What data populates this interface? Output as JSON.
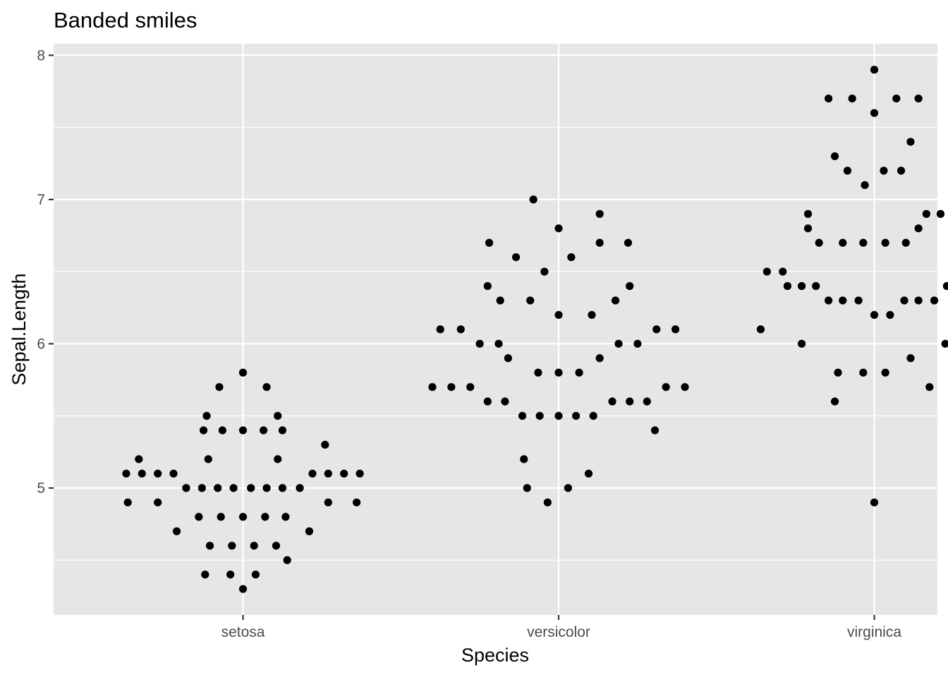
{
  "chart_data": {
    "type": "scatter",
    "title": "Banded smiles",
    "xlabel": "Species",
    "ylabel": "Sepal.Length",
    "categories": [
      "setosa",
      "versicolor",
      "virginica"
    ],
    "y_ticks": [
      5,
      6,
      7,
      8
    ],
    "ylim": [
      4.12,
      8.08
    ],
    "grid": true,
    "legend": "none",
    "colors": {
      "panel": "#e6e6e6",
      "grid": "#ffffff",
      "point": "#000000",
      "tick_text": "#4d4d4d"
    },
    "points": [
      {
        "species": "setosa",
        "x_offset": -0.37,
        "y": 5.1
      },
      {
        "species": "setosa",
        "x_offset": -0.32,
        "y": 5.1
      },
      {
        "species": "setosa",
        "x_offset": -0.27,
        "y": 5.1
      },
      {
        "species": "setosa",
        "x_offset": -0.22,
        "y": 5.1
      },
      {
        "species": "setosa",
        "x_offset": 0.22,
        "y": 5.1
      },
      {
        "species": "setosa",
        "x_offset": 0.27,
        "y": 5.1
      },
      {
        "species": "setosa",
        "x_offset": 0.32,
        "y": 5.1
      },
      {
        "species": "setosa",
        "x_offset": 0.37,
        "y": 5.1
      },
      {
        "species": "setosa",
        "x_offset": -0.33,
        "y": 5.2
      },
      {
        "species": "setosa",
        "x_offset": -0.11,
        "y": 5.2
      },
      {
        "species": "setosa",
        "x_offset": 0.11,
        "y": 5.2
      },
      {
        "species": "setosa",
        "x_offset": 0.26,
        "y": 5.3
      },
      {
        "species": "setosa",
        "x_offset": -0.365,
        "y": 4.9
      },
      {
        "species": "setosa",
        "x_offset": -0.27,
        "y": 4.9
      },
      {
        "species": "setosa",
        "x_offset": 0.27,
        "y": 4.9
      },
      {
        "species": "setosa",
        "x_offset": 0.36,
        "y": 4.9
      },
      {
        "species": "setosa",
        "x_offset": -0.18,
        "y": 5.0
      },
      {
        "species": "setosa",
        "x_offset": -0.13,
        "y": 5.0
      },
      {
        "species": "setosa",
        "x_offset": -0.08,
        "y": 5.0
      },
      {
        "species": "setosa",
        "x_offset": -0.03,
        "y": 5.0
      },
      {
        "species": "setosa",
        "x_offset": 0.025,
        "y": 5.0
      },
      {
        "species": "setosa",
        "x_offset": 0.075,
        "y": 5.0
      },
      {
        "species": "setosa",
        "x_offset": 0.125,
        "y": 5.0
      },
      {
        "species": "setosa",
        "x_offset": 0.18,
        "y": 5.0
      },
      {
        "species": "setosa",
        "x_offset": -0.21,
        "y": 4.7
      },
      {
        "species": "setosa",
        "x_offset": 0.21,
        "y": 4.7
      },
      {
        "species": "setosa",
        "x_offset": -0.14,
        "y": 4.8
      },
      {
        "species": "setosa",
        "x_offset": -0.07,
        "y": 4.8
      },
      {
        "species": "setosa",
        "x_offset": 0.0,
        "y": 4.8
      },
      {
        "species": "setosa",
        "x_offset": 0.07,
        "y": 4.8
      },
      {
        "species": "setosa",
        "x_offset": 0.135,
        "y": 4.8
      },
      {
        "species": "setosa",
        "x_offset": -0.105,
        "y": 4.6
      },
      {
        "species": "setosa",
        "x_offset": -0.035,
        "y": 4.6
      },
      {
        "species": "setosa",
        "x_offset": 0.035,
        "y": 4.6
      },
      {
        "species": "setosa",
        "x_offset": 0.105,
        "y": 4.6
      },
      {
        "species": "setosa",
        "x_offset": 0.14,
        "y": 4.5
      },
      {
        "species": "setosa",
        "x_offset": -0.12,
        "y": 4.4
      },
      {
        "species": "setosa",
        "x_offset": -0.04,
        "y": 4.4
      },
      {
        "species": "setosa",
        "x_offset": 0.04,
        "y": 4.4
      },
      {
        "species": "setosa",
        "x_offset": 0.0,
        "y": 4.3
      },
      {
        "species": "setosa",
        "x_offset": -0.125,
        "y": 5.4
      },
      {
        "species": "setosa",
        "x_offset": -0.065,
        "y": 5.4
      },
      {
        "species": "setosa",
        "x_offset": 0.0,
        "y": 5.4
      },
      {
        "species": "setosa",
        "x_offset": 0.065,
        "y": 5.4
      },
      {
        "species": "setosa",
        "x_offset": 0.125,
        "y": 5.4
      },
      {
        "species": "setosa",
        "x_offset": -0.115,
        "y": 5.5
      },
      {
        "species": "setosa",
        "x_offset": 0.11,
        "y": 5.5
      },
      {
        "species": "setosa",
        "x_offset": -0.075,
        "y": 5.7
      },
      {
        "species": "setosa",
        "x_offset": 0.075,
        "y": 5.7
      },
      {
        "species": "setosa",
        "x_offset": 0.0,
        "y": 5.8
      },
      {
        "species": "versicolor",
        "x_offset": -0.4,
        "y": 5.7
      },
      {
        "species": "versicolor",
        "x_offset": -0.34,
        "y": 5.7
      },
      {
        "species": "versicolor",
        "x_offset": -0.28,
        "y": 5.7
      },
      {
        "species": "versicolor",
        "x_offset": 0.34,
        "y": 5.7
      },
      {
        "species": "versicolor",
        "x_offset": 0.4,
        "y": 5.7
      },
      {
        "species": "versicolor",
        "x_offset": -0.375,
        "y": 6.1
      },
      {
        "species": "versicolor",
        "x_offset": -0.31,
        "y": 6.1
      },
      {
        "species": "versicolor",
        "x_offset": 0.31,
        "y": 6.1
      },
      {
        "species": "versicolor",
        "x_offset": 0.37,
        "y": 6.1
      },
      {
        "species": "versicolor",
        "x_offset": -0.25,
        "y": 6.0
      },
      {
        "species": "versicolor",
        "x_offset": -0.19,
        "y": 6.0
      },
      {
        "species": "versicolor",
        "x_offset": 0.19,
        "y": 6.0
      },
      {
        "species": "versicolor",
        "x_offset": 0.25,
        "y": 6.0
      },
      {
        "species": "versicolor",
        "x_offset": -0.225,
        "y": 5.6
      },
      {
        "species": "versicolor",
        "x_offset": -0.17,
        "y": 5.6
      },
      {
        "species": "versicolor",
        "x_offset": 0.17,
        "y": 5.6
      },
      {
        "species": "versicolor",
        "x_offset": 0.225,
        "y": 5.6
      },
      {
        "species": "versicolor",
        "x_offset": 0.28,
        "y": 5.6
      },
      {
        "species": "versicolor",
        "x_offset": -0.115,
        "y": 5.5
      },
      {
        "species": "versicolor",
        "x_offset": -0.06,
        "y": 5.5
      },
      {
        "species": "versicolor",
        "x_offset": 0.0,
        "y": 5.5
      },
      {
        "species": "versicolor",
        "x_offset": 0.055,
        "y": 5.5
      },
      {
        "species": "versicolor",
        "x_offset": 0.11,
        "y": 5.5
      },
      {
        "species": "versicolor",
        "x_offset": 0.305,
        "y": 5.4
      },
      {
        "species": "versicolor",
        "x_offset": -0.11,
        "y": 5.2
      },
      {
        "species": "versicolor",
        "x_offset": 0.095,
        "y": 5.1
      },
      {
        "species": "versicolor",
        "x_offset": -0.1,
        "y": 5.0
      },
      {
        "species": "versicolor",
        "x_offset": 0.03,
        "y": 5.0
      },
      {
        "species": "versicolor",
        "x_offset": -0.035,
        "y": 4.9
      },
      {
        "species": "versicolor",
        "x_offset": -0.16,
        "y": 5.9
      },
      {
        "species": "versicolor",
        "x_offset": 0.13,
        "y": 5.9
      },
      {
        "species": "versicolor",
        "x_offset": -0.065,
        "y": 5.8
      },
      {
        "species": "versicolor",
        "x_offset": 0.0,
        "y": 5.8
      },
      {
        "species": "versicolor",
        "x_offset": 0.065,
        "y": 5.8
      },
      {
        "species": "versicolor",
        "x_offset": 0.0,
        "y": 6.2
      },
      {
        "species": "versicolor",
        "x_offset": 0.105,
        "y": 6.2
      },
      {
        "species": "versicolor",
        "x_offset": -0.185,
        "y": 6.3
      },
      {
        "species": "versicolor",
        "x_offset": -0.09,
        "y": 6.3
      },
      {
        "species": "versicolor",
        "x_offset": 0.18,
        "y": 6.3
      },
      {
        "species": "versicolor",
        "x_offset": -0.225,
        "y": 6.4
      },
      {
        "species": "versicolor",
        "x_offset": 0.225,
        "y": 6.4
      },
      {
        "species": "versicolor",
        "x_offset": -0.045,
        "y": 6.5
      },
      {
        "species": "versicolor",
        "x_offset": -0.135,
        "y": 6.6
      },
      {
        "species": "versicolor",
        "x_offset": 0.04,
        "y": 6.6
      },
      {
        "species": "versicolor",
        "x_offset": -0.22,
        "y": 6.7
      },
      {
        "species": "versicolor",
        "x_offset": 0.13,
        "y": 6.7
      },
      {
        "species": "versicolor",
        "x_offset": 0.22,
        "y": 6.7
      },
      {
        "species": "versicolor",
        "x_offset": 0.0,
        "y": 6.8
      },
      {
        "species": "versicolor",
        "x_offset": 0.13,
        "y": 6.9
      },
      {
        "species": "versicolor",
        "x_offset": -0.08,
        "y": 7.0
      },
      {
        "species": "virginica",
        "x_offset": -0.36,
        "y": 6.1
      },
      {
        "species": "virginica",
        "x_offset": 0.36,
        "y": 6.1
      },
      {
        "species": "virginica",
        "x_offset": -0.34,
        "y": 6.5
      },
      {
        "species": "virginica",
        "x_offset": -0.29,
        "y": 6.5
      },
      {
        "species": "virginica",
        "x_offset": 0.31,
        "y": 6.5
      },
      {
        "species": "virginica",
        "x_offset": 0.355,
        "y": 6.5
      },
      {
        "species": "virginica",
        "x_offset": -0.275,
        "y": 6.4
      },
      {
        "species": "virginica",
        "x_offset": -0.23,
        "y": 6.4
      },
      {
        "species": "virginica",
        "x_offset": -0.185,
        "y": 6.4
      },
      {
        "species": "virginica",
        "x_offset": 0.23,
        "y": 6.4
      },
      {
        "species": "virginica",
        "x_offset": 0.275,
        "y": 6.4
      },
      {
        "species": "virginica",
        "x_offset": -0.23,
        "y": 6.0
      },
      {
        "species": "virginica",
        "x_offset": 0.225,
        "y": 6.0
      },
      {
        "species": "virginica",
        "x_offset": -0.145,
        "y": 6.3
      },
      {
        "species": "virginica",
        "x_offset": -0.1,
        "y": 6.3
      },
      {
        "species": "virginica",
        "x_offset": -0.05,
        "y": 6.3
      },
      {
        "species": "virginica",
        "x_offset": 0.095,
        "y": 6.3
      },
      {
        "species": "virginica",
        "x_offset": 0.14,
        "y": 6.3
      },
      {
        "species": "virginica",
        "x_offset": 0.19,
        "y": 6.3
      },
      {
        "species": "virginica",
        "x_offset": 0.0,
        "y": 6.2
      },
      {
        "species": "virginica",
        "x_offset": 0.05,
        "y": 6.2
      },
      {
        "species": "virginica",
        "x_offset": 0.115,
        "y": 5.9
      },
      {
        "species": "virginica",
        "x_offset": -0.115,
        "y": 5.8
      },
      {
        "species": "virginica",
        "x_offset": -0.035,
        "y": 5.8
      },
      {
        "species": "virginica",
        "x_offset": 0.035,
        "y": 5.8
      },
      {
        "species": "virginica",
        "x_offset": 0.175,
        "y": 5.7
      },
      {
        "species": "virginica",
        "x_offset": -0.125,
        "y": 5.6
      },
      {
        "species": "virginica",
        "x_offset": 0.0,
        "y": 4.9
      },
      {
        "species": "virginica",
        "x_offset": -0.175,
        "y": 6.7
      },
      {
        "species": "virginica",
        "x_offset": -0.1,
        "y": 6.7
      },
      {
        "species": "virginica",
        "x_offset": -0.035,
        "y": 6.7
      },
      {
        "species": "virginica",
        "x_offset": 0.035,
        "y": 6.7
      },
      {
        "species": "virginica",
        "x_offset": 0.1,
        "y": 6.7
      },
      {
        "species": "virginica",
        "x_offset": -0.21,
        "y": 6.8
      },
      {
        "species": "virginica",
        "x_offset": 0.14,
        "y": 6.8
      },
      {
        "species": "virginica",
        "x_offset": -0.21,
        "y": 6.9
      },
      {
        "species": "virginica",
        "x_offset": 0.165,
        "y": 6.9
      },
      {
        "species": "virginica",
        "x_offset": 0.21,
        "y": 6.9
      },
      {
        "species": "virginica",
        "x_offset": -0.03,
        "y": 7.1
      },
      {
        "species": "virginica",
        "x_offset": -0.085,
        "y": 7.2
      },
      {
        "species": "virginica",
        "x_offset": 0.03,
        "y": 7.2
      },
      {
        "species": "virginica",
        "x_offset": 0.085,
        "y": 7.2
      },
      {
        "species": "virginica",
        "x_offset": -0.125,
        "y": 7.3
      },
      {
        "species": "virginica",
        "x_offset": 0.115,
        "y": 7.4
      },
      {
        "species": "virginica",
        "x_offset": 0.0,
        "y": 7.6
      },
      {
        "species": "virginica",
        "x_offset": -0.145,
        "y": 7.7
      },
      {
        "species": "virginica",
        "x_offset": -0.07,
        "y": 7.7
      },
      {
        "species": "virginica",
        "x_offset": 0.07,
        "y": 7.7
      },
      {
        "species": "virginica",
        "x_offset": 0.14,
        "y": 7.7
      },
      {
        "species": "virginica",
        "x_offset": 0.0,
        "y": 7.9
      }
    ]
  }
}
